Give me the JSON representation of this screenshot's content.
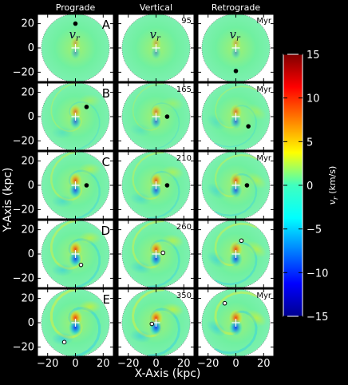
{
  "chart_data": {
    "type": "heatmap",
    "columns": [
      "Prograde",
      "Vertical",
      "Retrograde"
    ],
    "rows": [
      "A",
      "B",
      "C",
      "D",
      "E"
    ],
    "time_labels": [
      "95",
      "165",
      "210",
      "260",
      "350"
    ],
    "time_unit": "Myr",
    "panel_label": "v",
    "panel_label_sub": "r",
    "xlabel": "X-Axis (kpc)",
    "ylabel": "Y-Axis (kpc)",
    "x_ticks": [
      -20,
      0,
      20
    ],
    "y_ticks": [
      20,
      0,
      -20
    ],
    "xlim": [
      -25,
      25
    ],
    "ylim": [
      -25,
      25
    ],
    "colorbar": {
      "label": "v",
      "label_sub": "r",
      "label_unit": "(km/s)",
      "ticks": [
        15,
        10,
        5,
        0,
        -5,
        -10,
        -15
      ],
      "range": [
        -15,
        15
      ],
      "colormap": "jet"
    },
    "perturber_positions": [
      [
        {
          "x": 0,
          "y": 20,
          "filled": true
        },
        {
          "x": 0,
          "y": 0,
          "filled": true,
          "hidden": true
        },
        {
          "x": 0,
          "y": -19,
          "filled": true
        }
      ],
      [
        {
          "x": 8,
          "y": 8,
          "filled": true
        },
        {
          "x": 8,
          "y": 0,
          "filled": true
        },
        {
          "x": 9,
          "y": -8,
          "filled": true
        }
      ],
      [
        {
          "x": 8,
          "y": 0,
          "filled": true
        },
        {
          "x": 8,
          "y": 0,
          "filled": true
        },
        {
          "x": 8,
          "y": 0,
          "filled": true
        }
      ],
      [
        {
          "x": 4,
          "y": -9,
          "filled": false
        },
        {
          "x": 5,
          "y": 1,
          "filled": false
        },
        {
          "x": 4,
          "y": 11,
          "filled": false
        }
      ],
      [
        {
          "x": -8,
          "y": -16,
          "filled": false
        },
        {
          "x": -3,
          "y": -1,
          "filled": false
        },
        {
          "x": -8,
          "y": 16,
          "filled": false
        }
      ]
    ]
  }
}
